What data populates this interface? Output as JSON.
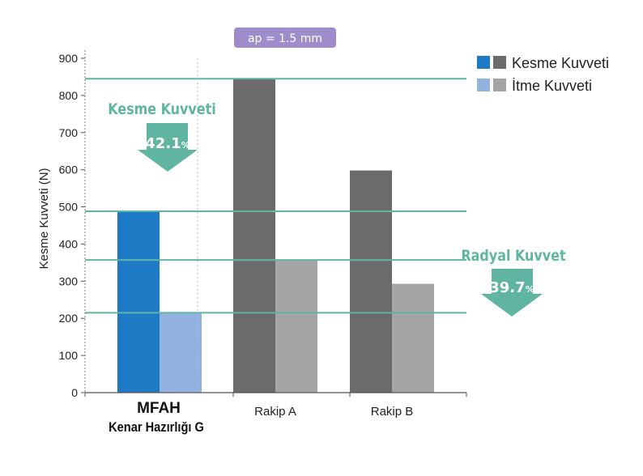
{
  "chart_data": {
    "type": "bar",
    "title_badge": "ap = 1.5 mm",
    "ylabel": "Kesme Kuvveti (N)",
    "ylim": [
      0,
      900
    ],
    "yticks": [
      0,
      100,
      200,
      300,
      400,
      500,
      600,
      700,
      800,
      900
    ],
    "ytick_labels": [
      "0",
      "100",
      "200",
      "300",
      "400",
      "500",
      "600",
      "700",
      "800",
      "900"
    ],
    "grid": false,
    "legend_position": "top-right",
    "categories": [
      {
        "line1": "MFAH",
        "line2": "Kenar Hazırlığı G"
      },
      {
        "line1": "Rakip A",
        "line2": ""
      },
      {
        "line1": "Rakip B",
        "line2": ""
      }
    ],
    "series": [
      {
        "name": "Kesme Kuvveti",
        "values": [
          488,
          845,
          598
        ],
        "colors": [
          "#1f7ac6",
          "#6b6b6b",
          "#6b6b6b"
        ]
      },
      {
        "name": "İtme Kuvveti",
        "values": [
          215,
          357,
          293
        ],
        "colors": [
          "#92b2e0",
          "#a5a5a5",
          "#a5a5a5"
        ]
      }
    ],
    "reference_lines": [
      845,
      488,
      357,
      215
    ],
    "annotations": [
      {
        "label": "Kesme Kuvveti",
        "value": "42.1",
        "unit": "%",
        "color": "#5fb5a2"
      },
      {
        "label": "Radyal Kuvvet",
        "value": "39.7",
        "unit": "%",
        "color": "#5fb5a2"
      }
    ],
    "colors": {
      "reference_line": "#5fb5a2",
      "badge": "#9f8ccb",
      "axis": "#444444"
    }
  }
}
